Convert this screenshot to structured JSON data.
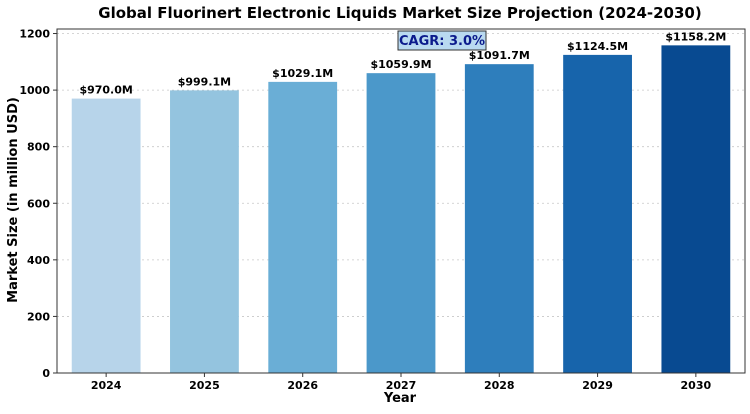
{
  "chart_data": {
    "type": "bar",
    "title": "Global Fluorinert Electronic Liquids Market Size Projection (2024-2030)",
    "xlabel": "Year",
    "ylabel": "Market Size (in million USD)",
    "categories": [
      "2024",
      "2025",
      "2026",
      "2027",
      "2028",
      "2029",
      "2030"
    ],
    "values": [
      970.0,
      999.1,
      1029.1,
      1059.9,
      1091.7,
      1124.5,
      1158.2
    ],
    "data_labels": [
      "$970.0M",
      "$999.1M",
      "$1029.1M",
      "$1059.9M",
      "$1091.7M",
      "$1124.5M",
      "$1158.2M"
    ],
    "ylim": [
      0,
      1216
    ],
    "yticks": [
      0,
      200,
      400,
      600,
      800,
      1000,
      1200
    ],
    "grid": "horizontal dashed",
    "legend": "none",
    "annotation": "CAGR: 3.0%",
    "colors": [
      "#b7d4ea",
      "#94c4df",
      "#6aaed6",
      "#4b98ca",
      "#2e7ebc",
      "#1764ab",
      "#084a91"
    ],
    "annotation_box_fill": "#b9d9f0",
    "annotation_text_color": "#0b1a8c"
  }
}
